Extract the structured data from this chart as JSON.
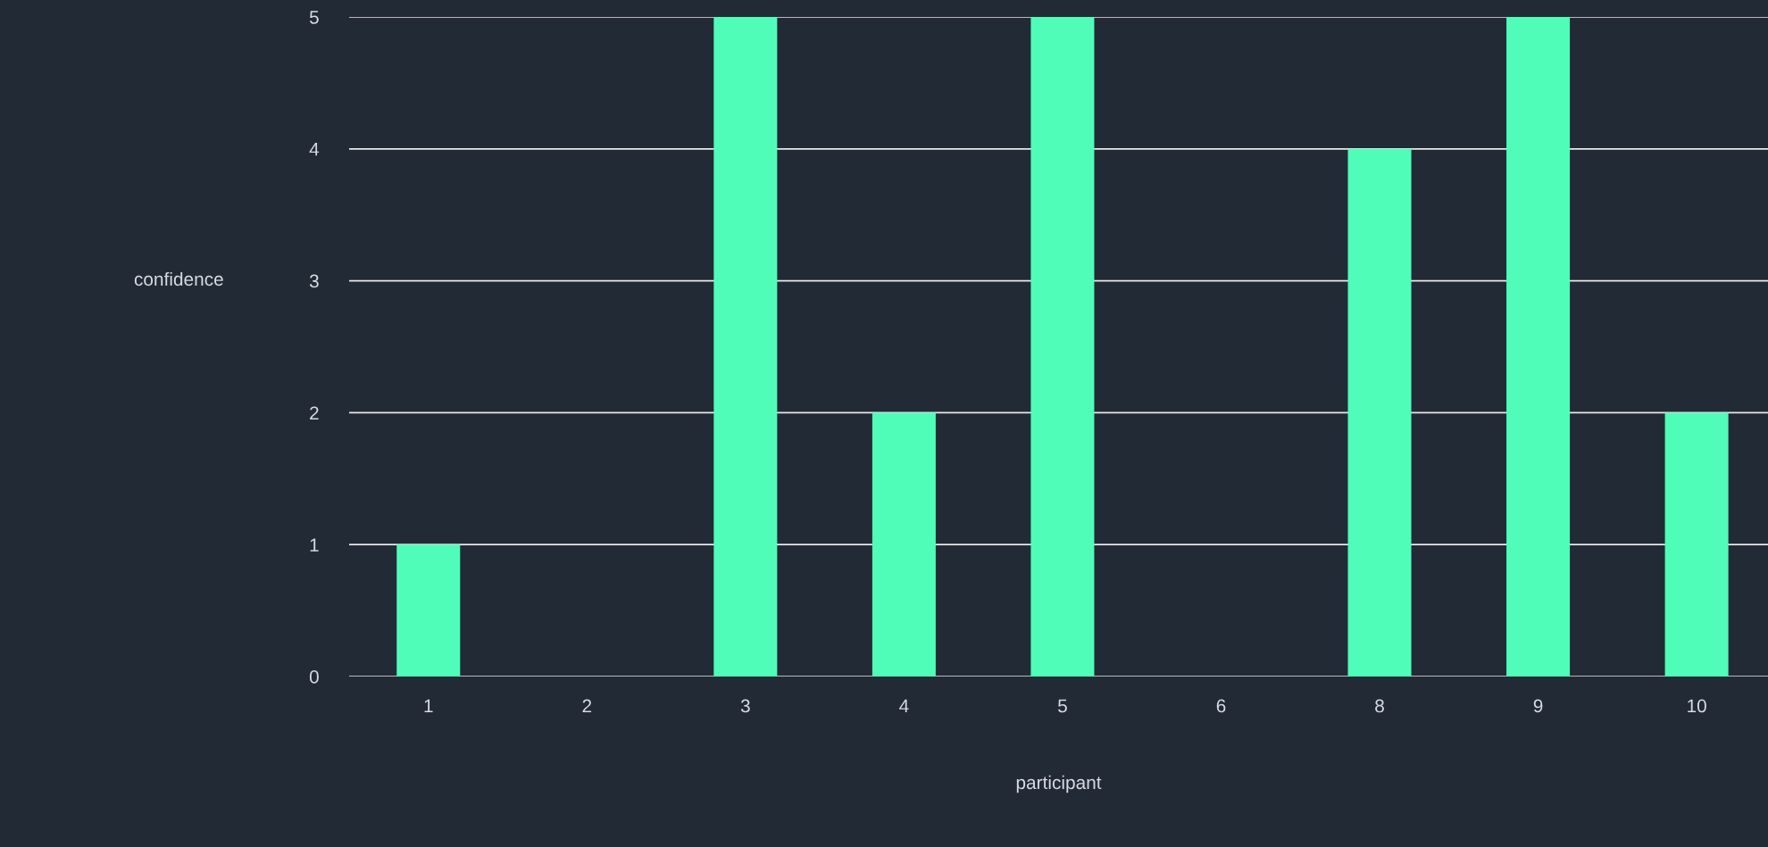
{
  "chart_data": {
    "type": "bar",
    "xlabel": "participant",
    "ylabel": "confidence",
    "categories": [
      "1",
      "2",
      "3",
      "4",
      "5",
      "6",
      "8",
      "9",
      "10"
    ],
    "values": [
      1,
      0,
      5,
      2,
      5,
      0,
      4,
      5,
      2
    ],
    "color": "#4ffdb9",
    "ylim": [
      0,
      5
    ],
    "yticks": [
      0,
      1,
      2,
      3,
      4,
      5
    ],
    "grid": "y",
    "legend": false
  }
}
